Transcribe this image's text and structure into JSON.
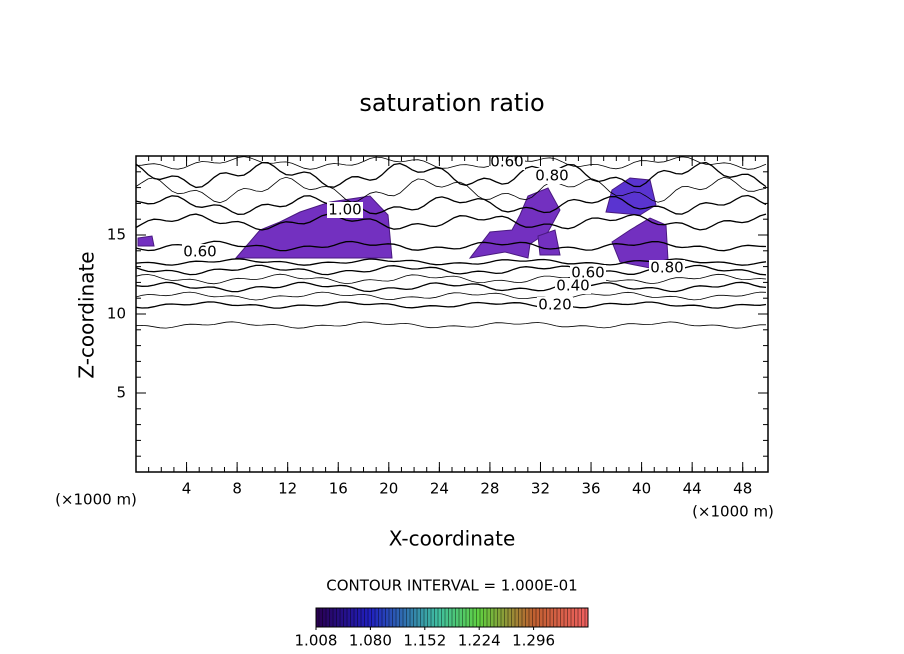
{
  "chart_data": {
    "type": "contour",
    "title": "saturation ratio",
    "x_label": "X-coordinate",
    "y_label": "Z-coordinate",
    "x_unit": "(×1000 m)",
    "y_unit": "(×1000 m)",
    "xlim": [
      0,
      50
    ],
    "ylim": [
      0,
      20
    ],
    "xticks": [
      4,
      8,
      12,
      16,
      20,
      24,
      28,
      32,
      36,
      40,
      44,
      48
    ],
    "yticks": [
      5,
      10,
      15
    ],
    "contour_labels": [
      {
        "value": 0.6,
        "label": "0.60"
      },
      {
        "value": 0.8,
        "label": "0.80"
      },
      {
        "value": 1,
        "label": "1.00"
      },
      {
        "value": 0.6,
        "label": "0.60"
      },
      {
        "value": 0.6,
        "label": "0.60"
      },
      {
        "value": 0.8,
        "label": "0.80"
      },
      {
        "value": 0.4,
        "label": "0.40"
      },
      {
        "value": 0.2,
        "label": "0.20"
      }
    ],
    "contour_interval": "CONTOUR INTERVAL = 1.000E-01",
    "colorbar_lim": [
      1.008,
      1.368
    ],
    "colorbar_ticks": [
      1.008,
      {
        "value": 1.08,
        "label": "1.080"
      },
      1.152,
      1.224,
      1.296
    ]
  }
}
